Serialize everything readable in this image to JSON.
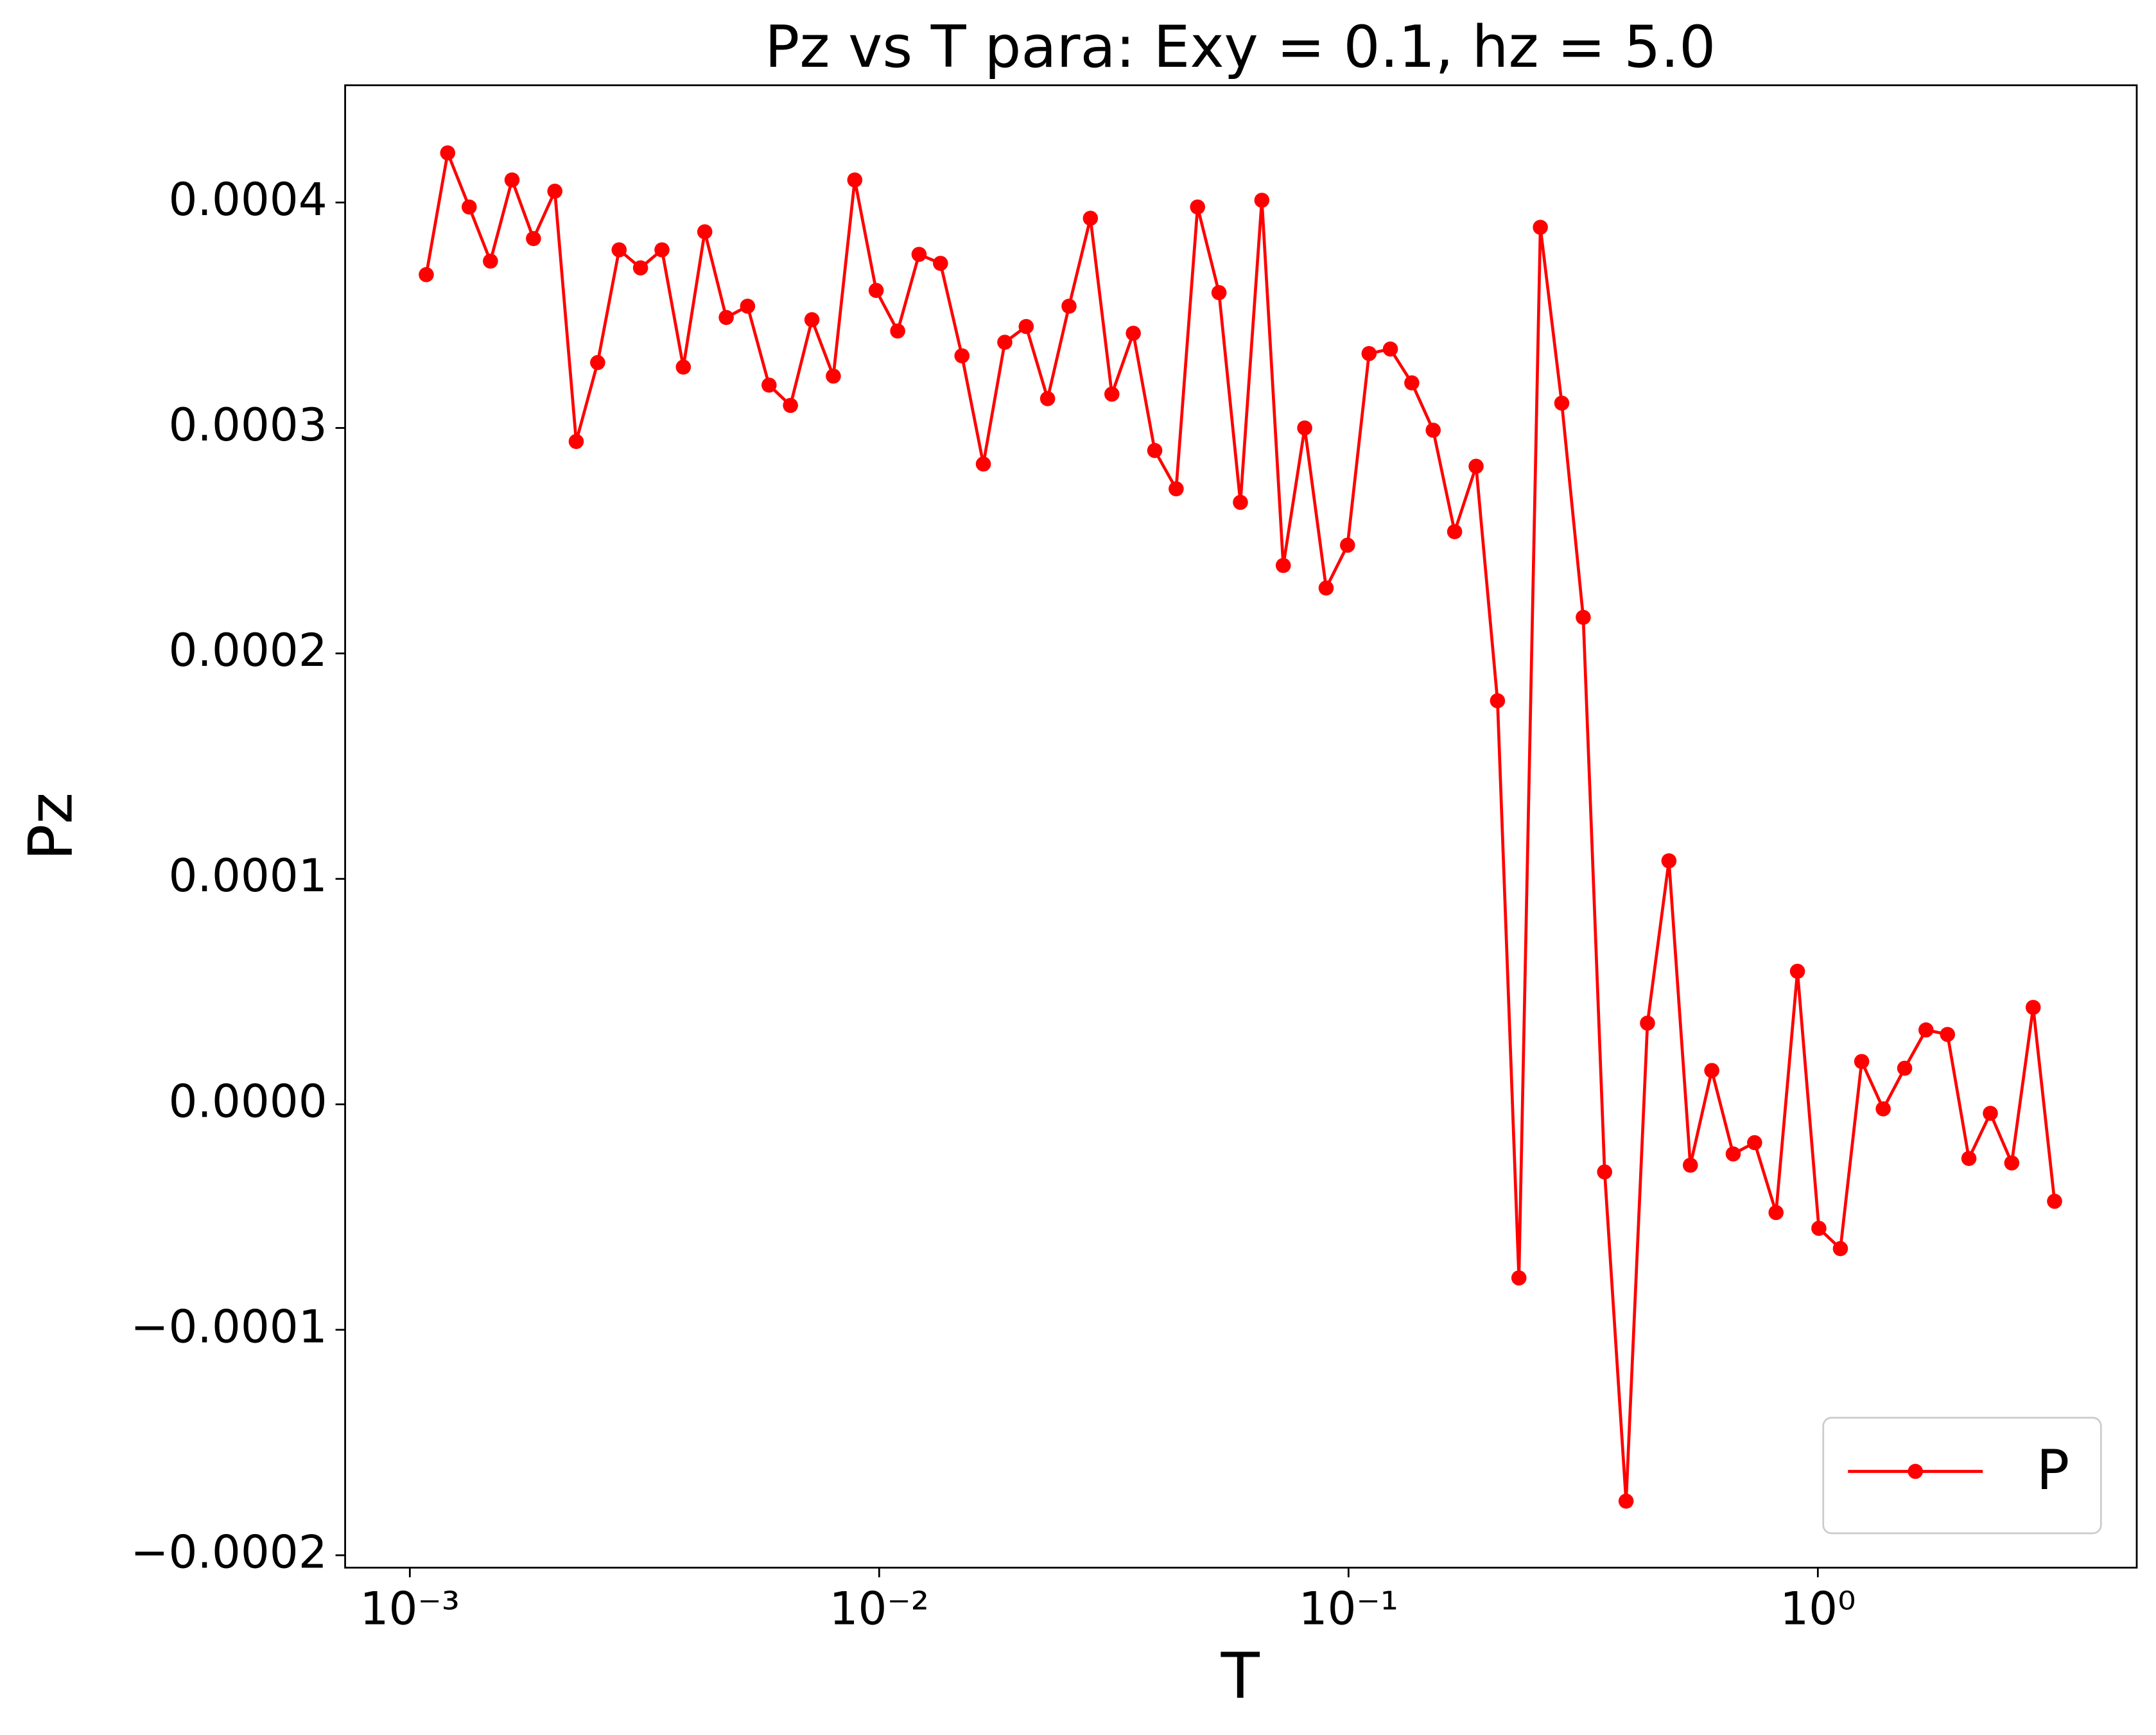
{
  "chart_data": {
    "type": "line",
    "title": "Pz vs T para: Exy = 0.1, hz = 5.0",
    "xlabel": "T",
    "ylabel": "Pz",
    "xscale": "log",
    "x": [
      0.001084,
      0.001204,
      0.001338,
      0.001485,
      0.001651,
      0.001834,
      0.002037,
      0.002262,
      0.002513,
      0.002792,
      0.003101,
      0.003445,
      0.003826,
      0.00425,
      0.004722,
      0.005244,
      0.005826,
      0.006471,
      0.00719,
      0.007986,
      0.008872,
      0.009854,
      0.01095,
      0.01216,
      0.01351,
      0.01501,
      0.01667,
      0.01852,
      0.02057,
      0.02285,
      0.02538,
      0.02819,
      0.03132,
      0.03479,
      0.03865,
      0.04293,
      0.04769,
      0.05297,
      0.05884,
      0.06536,
      0.07261,
      0.08066,
      0.0896,
      0.09952,
      0.1106,
      0.1228,
      0.1364,
      0.1515,
      0.1683,
      0.187,
      0.2077,
      0.2307,
      0.2563,
      0.2847,
      0.3163,
      0.3513,
      0.3903,
      0.4335,
      0.4816,
      0.535,
      0.5943,
      0.6601,
      0.7333,
      0.8145,
      0.9048,
      1.005,
      1.117,
      1.24,
      1.378,
      1.531,
      1.7,
      1.889,
      2.098,
      2.331,
      2.589,
      2.876,
      3.194
    ],
    "series": [
      {
        "name": "P",
        "color": "#ff0000",
        "marker": "o",
        "values": [
          0.000368,
          0.000422,
          0.000398,
          0.000374,
          0.00041,
          0.000384,
          0.000405,
          0.000294,
          0.000329,
          0.000379,
          0.000371,
          0.000379,
          0.000327,
          0.000387,
          0.000349,
          0.000354,
          0.000319,
          0.00031,
          0.000348,
          0.000323,
          0.00041,
          0.000361,
          0.000343,
          0.000377,
          0.000373,
          0.000332,
          0.000284,
          0.000338,
          0.000345,
          0.000313,
          0.000354,
          0.000393,
          0.000315,
          0.000342,
          0.00029,
          0.000273,
          0.000398,
          0.00036,
          0.000267,
          0.000401,
          0.000239,
          0.0003,
          0.000229,
          0.000248,
          0.000333,
          0.000335,
          0.00032,
          0.000299,
          0.000254,
          0.000283,
          0.000179,
          -7.7e-05,
          0.000389,
          0.000311,
          0.000216,
          -3e-05,
          -0.000176,
          3.6e-05,
          0.000108,
          -2.7e-05,
          1.5e-05,
          -2.2e-05,
          -1.7e-05,
          -4.8e-05,
          5.9e-05,
          -5.5e-05,
          -6.4e-05,
          1.9e-05,
          -2e-06,
          1.6e-05,
          3.3e-05,
          3.1e-05,
          -2.4e-05,
          -4e-06,
          -2.6e-05,
          4.3e-05,
          -4.3e-05
        ]
      }
    ],
    "xlim": [
      0.000728,
      4.78
    ],
    "ylim": [
      -0.0002055,
      0.000452
    ],
    "xticks": [
      {
        "value": 0.001,
        "label": "10⁻³"
      },
      {
        "value": 0.01,
        "label": "10⁻²"
      },
      {
        "value": 0.1,
        "label": "10⁻¹"
      },
      {
        "value": 1,
        "label": "10⁰"
      }
    ],
    "yticks": [
      {
        "value": -0.0002,
        "label": "−0.0002"
      },
      {
        "value": -0.0001,
        "label": "−0.0001"
      },
      {
        "value": 0,
        "label": "0.0000"
      },
      {
        "value": 0.0001,
        "label": "0.0001"
      },
      {
        "value": 0.0002,
        "label": "0.0002"
      },
      {
        "value": 0.0003,
        "label": "0.0003"
      },
      {
        "value": 0.0004,
        "label": "0.0004"
      }
    ],
    "legend": "lower right"
  }
}
